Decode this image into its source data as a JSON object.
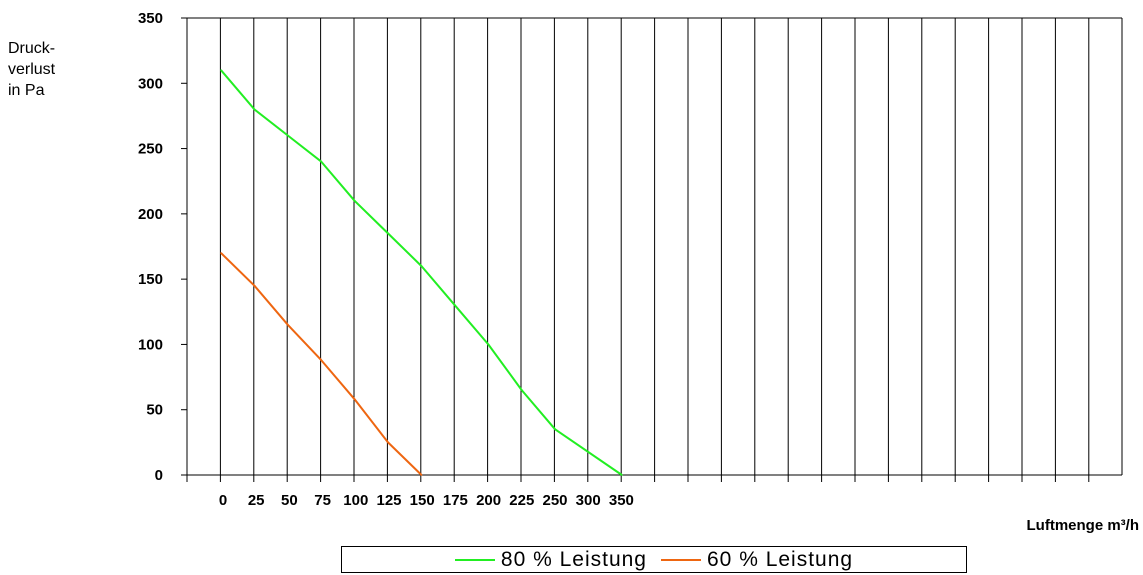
{
  "chart_data": {
    "type": "line",
    "ylabel_lines": [
      "Druck-",
      "verlust",
      "in Pa"
    ],
    "xlabel": "Luftmenge m³/h",
    "yticks": [
      "350",
      "300",
      "250",
      "200",
      "150",
      "100",
      "50",
      "0"
    ],
    "xticks": [
      "0",
      "25",
      "50",
      "75",
      "100",
      "125",
      "150",
      "175",
      "200",
      "225",
      "250",
      "300",
      "350"
    ],
    "ylim": [
      0,
      350
    ],
    "grid": true,
    "legend_position": "bottom",
    "series": [
      {
        "name": "80 % Leistung",
        "color": "#22ee22",
        "points": [
          {
            "x": 0,
            "y": 310
          },
          {
            "x": 25,
            "y": 280
          },
          {
            "x": 50,
            "y": 260
          },
          {
            "x": 75,
            "y": 240
          },
          {
            "x": 100,
            "y": 210
          },
          {
            "x": 125,
            "y": 185
          },
          {
            "x": 150,
            "y": 160
          },
          {
            "x": 175,
            "y": 130
          },
          {
            "x": 200,
            "y": 100
          },
          {
            "x": 225,
            "y": 65
          },
          {
            "x": 250,
            "y": 35
          },
          {
            "x": 300,
            "y": 0
          }
        ]
      },
      {
        "name": "60 % Leistung",
        "color": "#ee6611",
        "points": [
          {
            "x": 0,
            "y": 170
          },
          {
            "x": 25,
            "y": 145
          },
          {
            "x": 50,
            "y": 115
          },
          {
            "x": 75,
            "y": 88
          },
          {
            "x": 100,
            "y": 58
          },
          {
            "x": 125,
            "y": 25
          },
          {
            "x": 150,
            "y": 0
          }
        ]
      }
    ]
  }
}
